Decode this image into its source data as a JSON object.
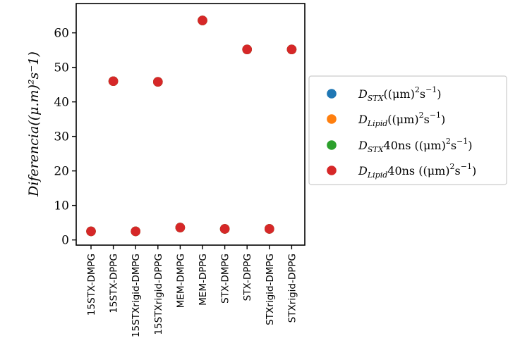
{
  "chart_data": {
    "type": "scatter",
    "title": "",
    "xlabel": "",
    "ylabel": "Diferencia((μ.m)²s⁻1)",
    "ylim": [
      -1.5,
      68.5
    ],
    "yticks": [
      0,
      10,
      20,
      30,
      40,
      50,
      60
    ],
    "grid": false,
    "legend_position": "center-right-outside",
    "categories": [
      "15STX-DMPG",
      "15STX-DPPG",
      "15STXrigid-DMPG",
      "15STXrigid-DPPG",
      "MEM-DMPG",
      "MEM-DPPG",
      "STX-DMPG",
      "STX-DPPG",
      "STXrigid-DMPG",
      "STXrigid-DPPG"
    ],
    "series": [
      {
        "name": "D_STX((μm)²s⁻¹)",
        "color": "#1f77b4",
        "values": [
          2.5,
          46.0,
          2.5,
          45.8,
          3.6,
          63.6,
          3.2,
          55.2,
          3.2,
          55.2
        ]
      },
      {
        "name": "D_Lipid((μm)²s⁻¹)",
        "color": "#ff7f0e",
        "values": [
          2.5,
          46.0,
          2.5,
          45.8,
          3.6,
          63.6,
          3.2,
          55.2,
          3.2,
          55.2
        ]
      },
      {
        "name": "D_STX40ns ((μm)²s⁻¹)",
        "color": "#2ca02c",
        "values": [
          2.5,
          46.0,
          2.5,
          45.8,
          3.6,
          63.6,
          3.2,
          55.2,
          3.2,
          55.2
        ]
      },
      {
        "name": "D_Lipid40ns ((μm)²s⁻¹)",
        "color": "#d62728",
        "values": [
          2.5,
          46.0,
          2.5,
          45.8,
          3.6,
          63.6,
          3.2,
          55.2,
          3.2,
          55.2
        ]
      }
    ],
    "legend": [
      {
        "main": "D",
        "sub": "STX",
        "rest": "((μm)",
        "sup": "2",
        "rest2": "s",
        "sup2": "−1",
        "end": ")"
      },
      {
        "main": "D",
        "sub": "Lipid",
        "rest": "((μm)",
        "sup": "2",
        "rest2": "s",
        "sup2": "−1",
        "end": ")"
      },
      {
        "main": "D",
        "sub": "STX",
        "rest": "40ns ((μm)",
        "sup": "2",
        "rest2": "s",
        "sup2": "−1",
        "end": ")"
      },
      {
        "main": "D",
        "sub": "Lipid",
        "rest": "40ns ((μm)",
        "sup": "2",
        "rest2": "s",
        "sup2": "−1",
        "end": ")"
      }
    ]
  }
}
